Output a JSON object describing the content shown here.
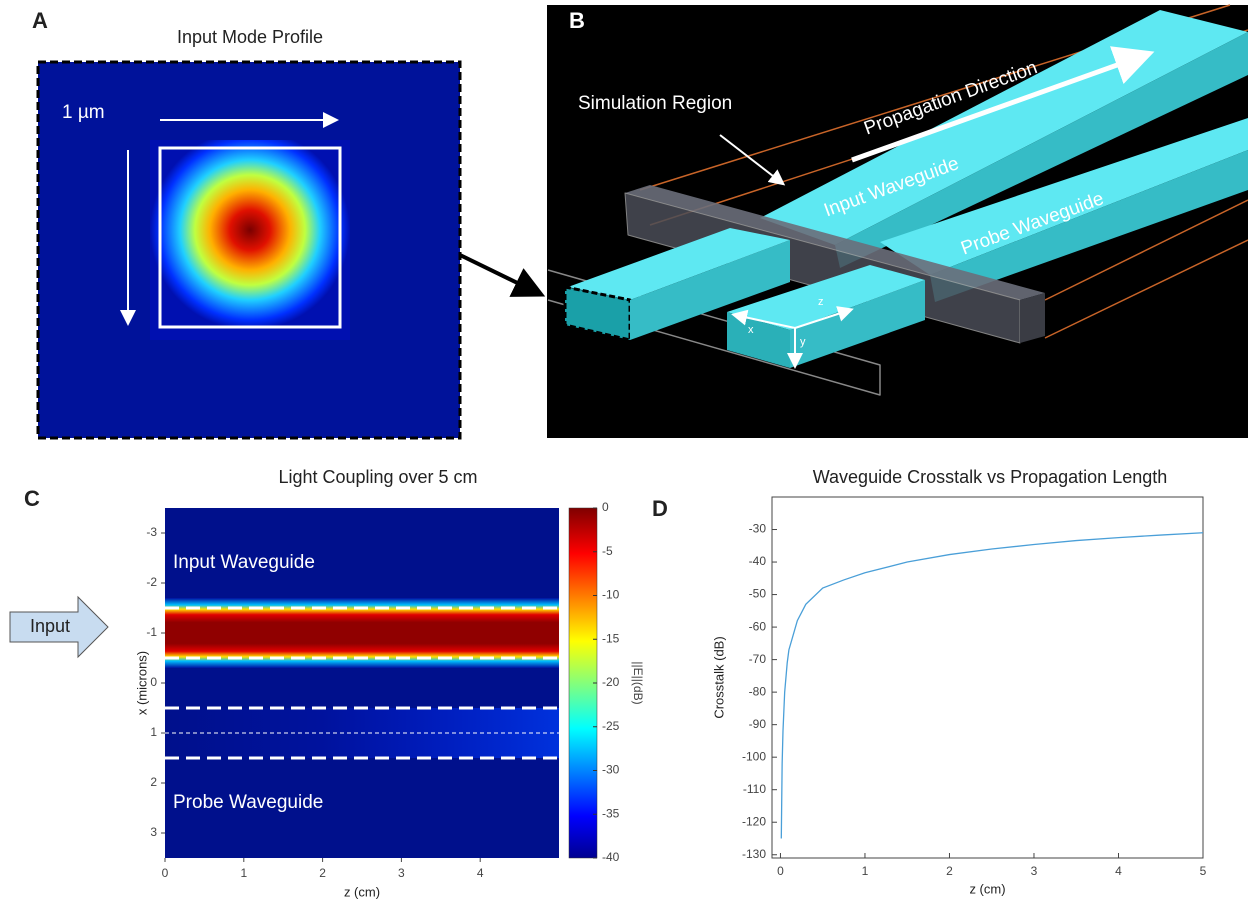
{
  "panels": {
    "a": {
      "label": "A",
      "title": "Input Mode Profile",
      "scale": "1 µm"
    },
    "b": {
      "label": "B",
      "simulation": "Simulation Region",
      "direction": "Propagation Direction",
      "input": "Input Waveguide",
      "probe": "Probe Waveguide",
      "axes": [
        "x",
        "y",
        "z"
      ]
    },
    "c": {
      "label": "C",
      "input": "Input"
    },
    "d": {
      "label": "D"
    }
  },
  "chart_data": [
    {
      "type": "heatmap",
      "title": "Light Coupling over 5 cm",
      "xlabel": "z (cm)",
      "ylabel": "x (microns)",
      "xlim": [
        0,
        5
      ],
      "xticks": [
        0,
        1,
        2,
        3,
        4
      ],
      "ylim": [
        -3.5,
        3.5
      ],
      "yticks": [
        -3,
        -2,
        -1,
        0,
        1,
        2,
        3
      ],
      "colorbar_label": "||E||(dB)",
      "clim": [
        -40,
        0
      ],
      "cticks": [
        0,
        -5,
        -10,
        -15,
        -20,
        -25,
        -30,
        -35,
        -40
      ],
      "waveguides": [
        {
          "name": "Input Waveguide",
          "x_range": [
            -1.5,
            -0.5
          ]
        },
        {
          "name": "Probe Waveguide",
          "x_range": [
            0.5,
            1.5
          ]
        }
      ]
    },
    {
      "type": "line",
      "title": "Waveguide Crosstalk vs Propagation Length",
      "xlabel": "z (cm)",
      "ylabel": "Crosstalk (dB)",
      "xlim": [
        -0.1,
        5
      ],
      "xticks": [
        0,
        1,
        2,
        3,
        4,
        5
      ],
      "ylim": [
        -131,
        -20
      ],
      "yticks": [
        -30,
        -40,
        -50,
        -60,
        -70,
        -80,
        -90,
        -100,
        -110,
        -120,
        -130
      ],
      "x": [
        0.01,
        0.02,
        0.03,
        0.05,
        0.08,
        0.1,
        0.2,
        0.3,
        0.5,
        0.75,
        1,
        1.5,
        2,
        2.5,
        3,
        3.5,
        4,
        4.5,
        5
      ],
      "series": [
        {
          "name": "Crosstalk",
          "color": "#4a9fd8",
          "values": [
            -125,
            -102,
            -92,
            -80,
            -71,
            -67,
            -58,
            -53,
            -48,
            -45.5,
            -43.3,
            -40,
            -37.7,
            -36,
            -34.6,
            -33.4,
            -32.5,
            -31.7,
            -31
          ]
        }
      ]
    }
  ]
}
